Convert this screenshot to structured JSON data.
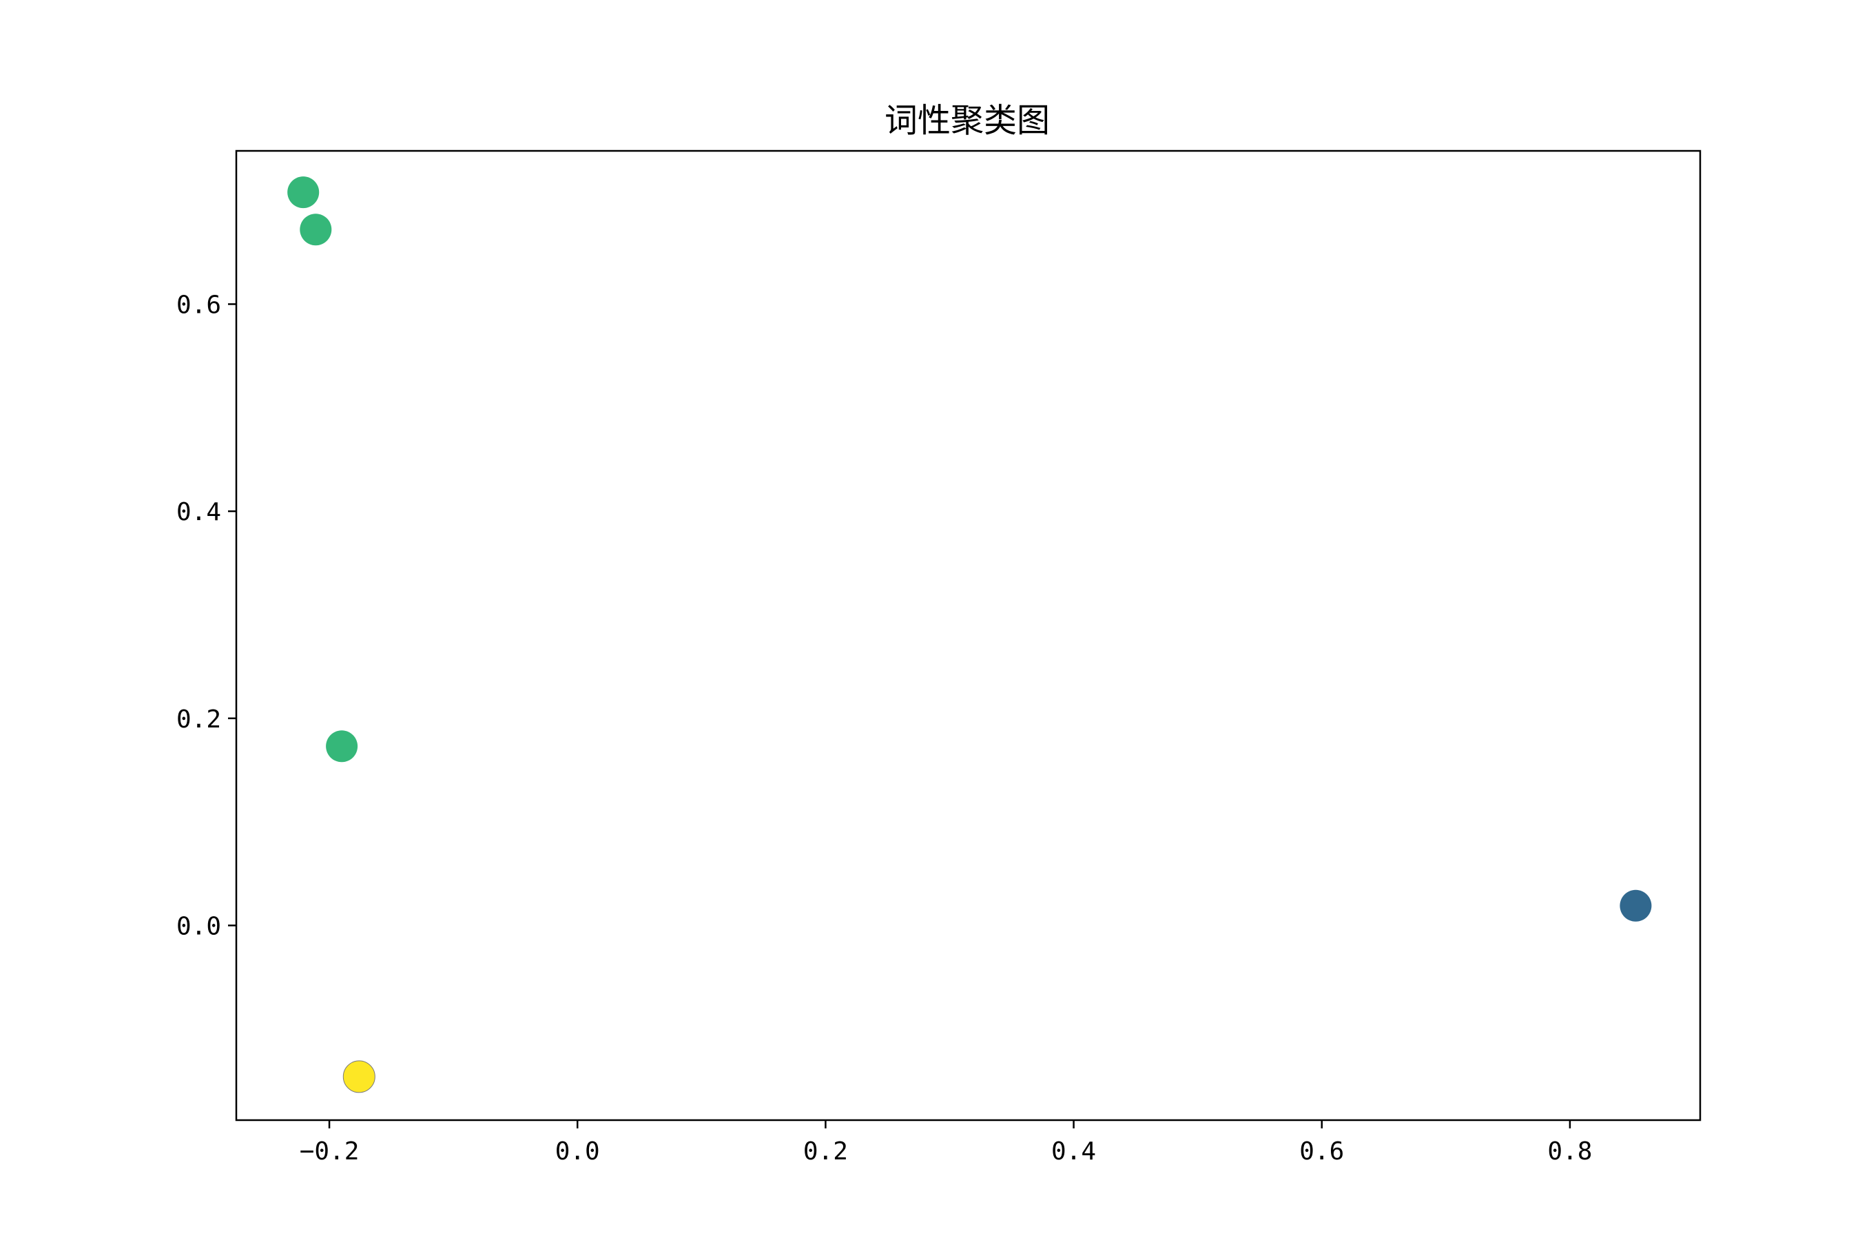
{
  "chart_data": {
    "type": "scatter",
    "title": "词性聚类图",
    "xlabel": "",
    "ylabel": "",
    "xlim": [
      -0.275,
      0.905
    ],
    "ylim": [
      -0.188,
      0.748
    ],
    "x_ticks": [
      -0.2,
      0.0,
      0.2,
      0.4,
      0.6,
      0.8
    ],
    "x_tick_labels": [
      "−0.2",
      "0.0",
      "0.2",
      "0.4",
      "0.6",
      "0.8"
    ],
    "y_ticks": [
      0.0,
      0.2,
      0.4,
      0.6
    ],
    "y_tick_labels": [
      "0.0",
      "0.2",
      "0.4",
      "0.6"
    ],
    "grid": false,
    "points": [
      {
        "x": -0.221,
        "y": 0.708,
        "color": "#35b779"
      },
      {
        "x": -0.211,
        "y": 0.672,
        "color": "#35b779"
      },
      {
        "x": -0.19,
        "y": 0.173,
        "color": "#35b779"
      },
      {
        "x": 0.853,
        "y": 0.019,
        "color": "#31688e"
      },
      {
        "x": -0.176,
        "y": -0.146,
        "color": "#fde725"
      }
    ]
  }
}
